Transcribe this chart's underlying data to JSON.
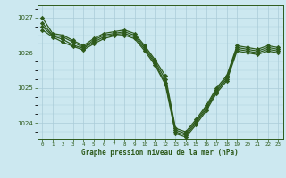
{
  "xlabel": "Graphe pression niveau de la mer (hPa)",
  "background_color": "#cce8f0",
  "plot_color": "#2d5a1b",
  "grid_color": "#aaccd8",
  "xlim": [
    -0.5,
    23.5
  ],
  "ylim": [
    1023.55,
    1027.35
  ],
  "yticks": [
    1024,
    1025,
    1026,
    1027
  ],
  "xticks": [
    0,
    1,
    2,
    3,
    4,
    5,
    6,
    7,
    8,
    9,
    10,
    11,
    12,
    13,
    14,
    15,
    16,
    17,
    18,
    19,
    20,
    21,
    22,
    23
  ],
  "series": [
    [
      1027.0,
      1026.55,
      1026.5,
      1026.35,
      1026.2,
      1026.4,
      1026.55,
      1026.6,
      1026.65,
      1026.55,
      1026.2,
      1025.8,
      1025.35,
      1023.85,
      1023.75,
      1024.1,
      1024.5,
      1025.0,
      1025.35,
      1026.2,
      1026.15,
      1026.1,
      1026.2,
      1026.15
    ],
    [
      1026.85,
      1026.5,
      1026.45,
      1026.3,
      1026.15,
      1026.35,
      1026.5,
      1026.55,
      1026.6,
      1026.5,
      1026.15,
      1025.75,
      1025.25,
      1023.8,
      1023.7,
      1024.05,
      1024.45,
      1024.95,
      1025.3,
      1026.15,
      1026.1,
      1026.05,
      1026.15,
      1026.1
    ],
    [
      1026.75,
      1026.48,
      1026.38,
      1026.22,
      1026.12,
      1026.3,
      1026.45,
      1026.52,
      1026.55,
      1026.45,
      1026.1,
      1025.7,
      1025.15,
      1023.75,
      1023.65,
      1024.0,
      1024.4,
      1024.9,
      1025.25,
      1026.1,
      1026.05,
      1026.0,
      1026.1,
      1026.05
    ],
    [
      1026.65,
      1026.45,
      1026.3,
      1026.18,
      1026.08,
      1026.25,
      1026.4,
      1026.48,
      1026.5,
      1026.4,
      1026.05,
      1025.65,
      1025.1,
      1023.7,
      1023.6,
      1023.95,
      1024.35,
      1024.85,
      1025.2,
      1026.05,
      1026.0,
      1025.95,
      1026.05,
      1026.0
    ]
  ],
  "marker": "D",
  "markersize": 2.2,
  "linewidth": 0.9
}
